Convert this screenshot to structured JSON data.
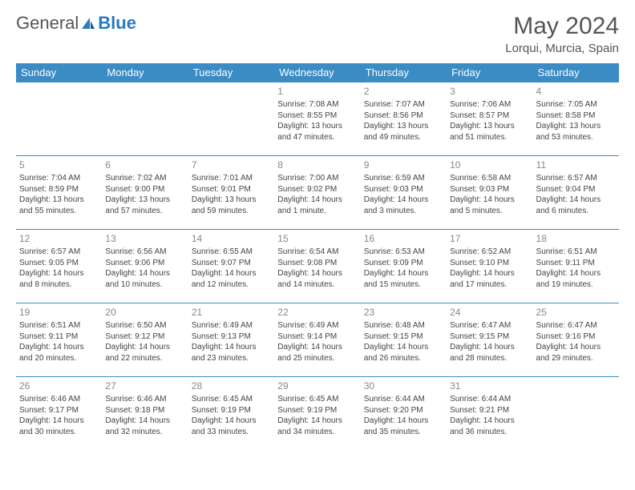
{
  "logo": {
    "text1": "General",
    "text2": "Blue"
  },
  "title": "May 2024",
  "location": "Lorqui, Murcia, Spain",
  "colors": {
    "header_bg": "#3b8bc5",
    "header_text": "#ffffff",
    "border": "#3b8bc5",
    "daynum": "#888888",
    "body_text": "#444444",
    "title_text": "#555555"
  },
  "weekdays": [
    "Sunday",
    "Monday",
    "Tuesday",
    "Wednesday",
    "Thursday",
    "Friday",
    "Saturday"
  ],
  "weeks": [
    [
      null,
      null,
      null,
      {
        "n": "1",
        "sr": "7:08 AM",
        "ss": "8:55 PM",
        "dl": "13 hours and 47 minutes."
      },
      {
        "n": "2",
        "sr": "7:07 AM",
        "ss": "8:56 PM",
        "dl": "13 hours and 49 minutes."
      },
      {
        "n": "3",
        "sr": "7:06 AM",
        "ss": "8:57 PM",
        "dl": "13 hours and 51 minutes."
      },
      {
        "n": "4",
        "sr": "7:05 AM",
        "ss": "8:58 PM",
        "dl": "13 hours and 53 minutes."
      }
    ],
    [
      {
        "n": "5",
        "sr": "7:04 AM",
        "ss": "8:59 PM",
        "dl": "13 hours and 55 minutes."
      },
      {
        "n": "6",
        "sr": "7:02 AM",
        "ss": "9:00 PM",
        "dl": "13 hours and 57 minutes."
      },
      {
        "n": "7",
        "sr": "7:01 AM",
        "ss": "9:01 PM",
        "dl": "13 hours and 59 minutes."
      },
      {
        "n": "8",
        "sr": "7:00 AM",
        "ss": "9:02 PM",
        "dl": "14 hours and 1 minute."
      },
      {
        "n": "9",
        "sr": "6:59 AM",
        "ss": "9:03 PM",
        "dl": "14 hours and 3 minutes."
      },
      {
        "n": "10",
        "sr": "6:58 AM",
        "ss": "9:03 PM",
        "dl": "14 hours and 5 minutes."
      },
      {
        "n": "11",
        "sr": "6:57 AM",
        "ss": "9:04 PM",
        "dl": "14 hours and 6 minutes."
      }
    ],
    [
      {
        "n": "12",
        "sr": "6:57 AM",
        "ss": "9:05 PM",
        "dl": "14 hours and 8 minutes."
      },
      {
        "n": "13",
        "sr": "6:56 AM",
        "ss": "9:06 PM",
        "dl": "14 hours and 10 minutes."
      },
      {
        "n": "14",
        "sr": "6:55 AM",
        "ss": "9:07 PM",
        "dl": "14 hours and 12 minutes."
      },
      {
        "n": "15",
        "sr": "6:54 AM",
        "ss": "9:08 PM",
        "dl": "14 hours and 14 minutes."
      },
      {
        "n": "16",
        "sr": "6:53 AM",
        "ss": "9:09 PM",
        "dl": "14 hours and 15 minutes."
      },
      {
        "n": "17",
        "sr": "6:52 AM",
        "ss": "9:10 PM",
        "dl": "14 hours and 17 minutes."
      },
      {
        "n": "18",
        "sr": "6:51 AM",
        "ss": "9:11 PM",
        "dl": "14 hours and 19 minutes."
      }
    ],
    [
      {
        "n": "19",
        "sr": "6:51 AM",
        "ss": "9:11 PM",
        "dl": "14 hours and 20 minutes."
      },
      {
        "n": "20",
        "sr": "6:50 AM",
        "ss": "9:12 PM",
        "dl": "14 hours and 22 minutes."
      },
      {
        "n": "21",
        "sr": "6:49 AM",
        "ss": "9:13 PM",
        "dl": "14 hours and 23 minutes."
      },
      {
        "n": "22",
        "sr": "6:49 AM",
        "ss": "9:14 PM",
        "dl": "14 hours and 25 minutes."
      },
      {
        "n": "23",
        "sr": "6:48 AM",
        "ss": "9:15 PM",
        "dl": "14 hours and 26 minutes."
      },
      {
        "n": "24",
        "sr": "6:47 AM",
        "ss": "9:15 PM",
        "dl": "14 hours and 28 minutes."
      },
      {
        "n": "25",
        "sr": "6:47 AM",
        "ss": "9:16 PM",
        "dl": "14 hours and 29 minutes."
      }
    ],
    [
      {
        "n": "26",
        "sr": "6:46 AM",
        "ss": "9:17 PM",
        "dl": "14 hours and 30 minutes."
      },
      {
        "n": "27",
        "sr": "6:46 AM",
        "ss": "9:18 PM",
        "dl": "14 hours and 32 minutes."
      },
      {
        "n": "28",
        "sr": "6:45 AM",
        "ss": "9:19 PM",
        "dl": "14 hours and 33 minutes."
      },
      {
        "n": "29",
        "sr": "6:45 AM",
        "ss": "9:19 PM",
        "dl": "14 hours and 34 minutes."
      },
      {
        "n": "30",
        "sr": "6:44 AM",
        "ss": "9:20 PM",
        "dl": "14 hours and 35 minutes."
      },
      {
        "n": "31",
        "sr": "6:44 AM",
        "ss": "9:21 PM",
        "dl": "14 hours and 36 minutes."
      },
      null
    ]
  ],
  "labels": {
    "sunrise": "Sunrise:",
    "sunset": "Sunset:",
    "daylight": "Daylight:"
  }
}
